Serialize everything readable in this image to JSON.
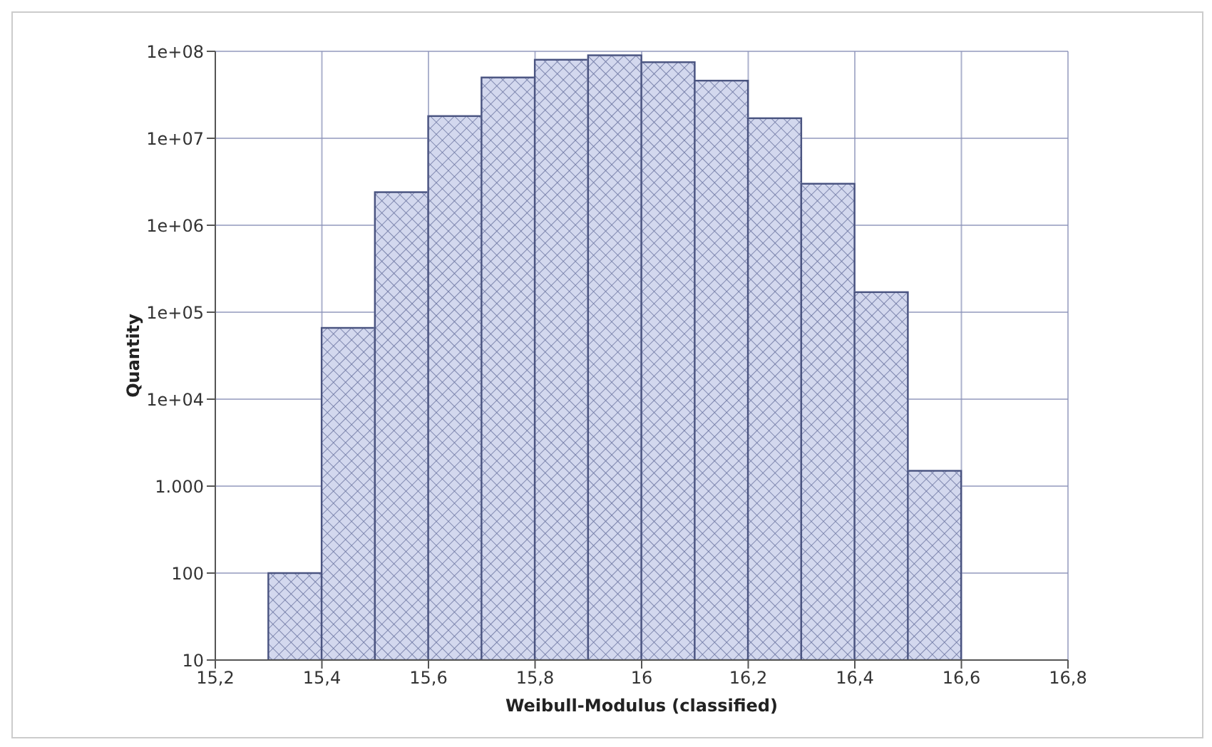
{
  "chart_data": {
    "type": "histogram",
    "xlabel": "Weibull-Modulus (classified)",
    "ylabel": "Quantity",
    "bins": [
      15.3,
      15.4,
      15.5,
      15.6,
      15.7,
      15.8,
      15.9,
      16.0,
      16.1,
      16.2,
      16.3,
      16.4,
      16.5,
      16.6
    ],
    "values": [
      100,
      66000,
      2400000,
      18000000,
      50000000,
      80000000,
      90000000,
      75000000,
      46000000,
      17000000,
      3000000,
      170000,
      1500
    ],
    "color": "#d3d8ee",
    "log": "y",
    "grid": true,
    "xlim": [
      15.2,
      16.8
    ],
    "xticks": [
      {
        "value": 15.2,
        "label": "15,2"
      },
      {
        "value": 15.4,
        "label": "15,4"
      },
      {
        "value": 15.6,
        "label": "15,6"
      },
      {
        "value": 15.8,
        "label": "15,8"
      },
      16,
      {
        "value": 16.2,
        "label": "16,2"
      },
      {
        "value": 16.4,
        "label": "16,4"
      },
      {
        "value": 16.6,
        "label": "16,6"
      },
      {
        "value": 16.8,
        "label": "16,8"
      }
    ],
    "ylim": [
      10,
      100000000
    ],
    "yticks": [
      10,
      100,
      {
        "value": 1000,
        "label": "1.000"
      },
      {
        "value": 10000,
        "label": "1e+04"
      },
      {
        "value": 100000,
        "label": "1e+05"
      },
      {
        "value": 1000000,
        "label": "1e+06"
      },
      {
        "value": 10000000,
        "label": "1e+07"
      },
      {
        "value": 100000000,
        "label": "1e+08"
      }
    ]
  }
}
